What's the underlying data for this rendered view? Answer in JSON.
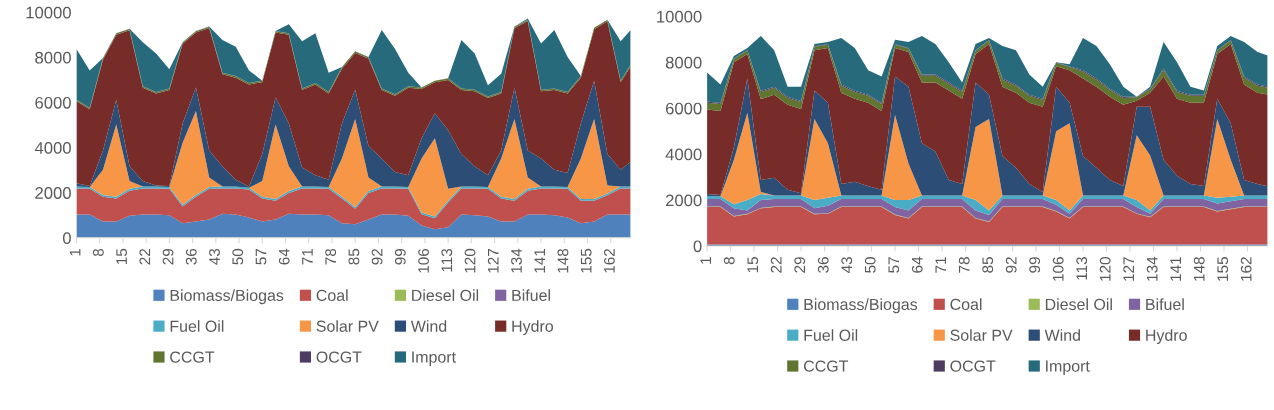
{
  "chart_data": [
    {
      "type": "area",
      "stacked": true,
      "legend": "bottom",
      "grid": false,
      "ylim": [
        0,
        10000
      ],
      "yticks": [
        0,
        2000,
        4000,
        6000,
        8000,
        10000
      ],
      "xlim": [
        1,
        168
      ],
      "xticks": [
        1,
        8,
        15,
        22,
        29,
        36,
        43,
        50,
        57,
        64,
        71,
        78,
        85,
        92,
        99,
        106,
        113,
        120,
        127,
        134,
        141,
        148,
        155,
        162
      ],
      "x": [
        1,
        5,
        9,
        13,
        17,
        21,
        25,
        29,
        33,
        37,
        41,
        45,
        49,
        53,
        57,
        61,
        65,
        69,
        73,
        77,
        81,
        85,
        89,
        93,
        97,
        101,
        105,
        109,
        113,
        117,
        121,
        125,
        129,
        133,
        137,
        141,
        145,
        149,
        153,
        157,
        161,
        165,
        168
      ],
      "series": [
        {
          "name": "Biomass/Biogas",
          "color": "#4f81bd",
          "values": [
            1030,
            1030,
            720,
            720,
            980,
            1030,
            1030,
            1000,
            640,
            720,
            810,
            1070,
            1030,
            900,
            720,
            810,
            1070,
            1030,
            1030,
            1000,
            640,
            600,
            810,
            1030,
            1030,
            980,
            550,
            380,
            470,
            1030,
            1000,
            950,
            720,
            720,
            1030,
            1030,
            1000,
            900,
            640,
            720,
            1030,
            1030,
            1030
          ]
        },
        {
          "name": "Coal",
          "color": "#c0504d",
          "values": [
            1160,
            1140,
            1100,
            1020,
            1110,
            1160,
            1160,
            1170,
            750,
            1100,
            1360,
            1120,
            1160,
            1240,
            1020,
            830,
            920,
            1160,
            1160,
            1170,
            1100,
            690,
            1180,
            1160,
            1160,
            1190,
            490,
            490,
            1090,
            1160,
            1190,
            1220,
            1020,
            920,
            1060,
            1160,
            1190,
            1270,
            1000,
            920,
            860,
            1160,
            1160
          ]
        },
        {
          "name": "Diesel Oil",
          "color": "#9bbb59",
          "values": [
            null,
            null,
            null,
            null,
            null,
            null,
            null,
            null,
            null,
            null,
            null,
            null,
            null,
            null,
            null,
            null,
            null,
            null,
            null,
            null,
            null,
            null,
            null,
            null,
            null,
            null,
            null,
            null,
            null,
            null,
            null,
            null,
            null,
            null,
            null,
            null,
            null,
            null,
            null,
            null,
            null,
            null,
            null
          ]
        },
        {
          "name": "Bifuel",
          "color": "#8064a2",
          "values": [
            null,
            null,
            null,
            null,
            null,
            null,
            null,
            null,
            null,
            null,
            null,
            null,
            null,
            null,
            null,
            null,
            null,
            null,
            null,
            null,
            null,
            null,
            null,
            null,
            null,
            null,
            null,
            null,
            null,
            null,
            null,
            null,
            null,
            null,
            null,
            null,
            null,
            null,
            null,
            null,
            null,
            null,
            null
          ]
        },
        {
          "name": "Fuel Oil",
          "color": "#4bacc6",
          "values": [
            80,
            80,
            80,
            80,
            80,
            80,
            80,
            80,
            80,
            80,
            80,
            80,
            80,
            80,
            80,
            80,
            80,
            80,
            80,
            80,
            80,
            80,
            80,
            80,
            80,
            80,
            80,
            80,
            80,
            80,
            80,
            80,
            80,
            80,
            80,
            80,
            80,
            80,
            80,
            80,
            80,
            80,
            80
          ]
        },
        {
          "name": "Solar PV",
          "color": "#f79646",
          "values": [
            0,
            0,
            1120,
            3200,
            350,
            0,
            0,
            0,
            2750,
            3720,
            420,
            0,
            0,
            0,
            700,
            3300,
            1100,
            0,
            0,
            0,
            1700,
            3900,
            600,
            0,
            0,
            0,
            2400,
            3470,
            530,
            0,
            0,
            0,
            1700,
            3550,
            500,
            0,
            0,
            0,
            1800,
            3550,
            350,
            0,
            0
          ]
        },
        {
          "name": "Wind",
          "color": "#2c4d75",
          "values": [
            150,
            50,
            850,
            1100,
            650,
            250,
            50,
            50,
            850,
            1050,
            1200,
            900,
            300,
            50,
            1200,
            1200,
            1900,
            850,
            500,
            320,
            1550,
            1300,
            1400,
            1250,
            650,
            520,
            900,
            1100,
            2600,
            1450,
            900,
            520,
            350,
            1400,
            1200,
            1250,
            750,
            620,
            1550,
            1700,
            1400,
            750,
            1100
          ]
        },
        {
          "name": "Hydro",
          "color": "#772c2a",
          "values": [
            3630,
            3400,
            4030,
            2880,
            6030,
            4130,
            4080,
            4250,
            3530,
            2430,
            5430,
            4080,
            4530,
            4530,
            3180,
            2880,
            3930,
            3430,
            4030,
            3830,
            2430,
            1630,
            3880,
            3030,
            3380,
            3880,
            2180,
            1380,
            2230,
            2830,
            3330,
            3430,
            2530,
            2630,
            5730,
            2980,
            3530,
            3530,
            2030,
            2280,
            5880,
            3880,
            4230
          ]
        },
        {
          "name": "CCGT",
          "color": "#5f7530",
          "values": [
            60,
            60,
            60,
            60,
            60,
            60,
            60,
            60,
            60,
            60,
            60,
            60,
            60,
            60,
            60,
            60,
            60,
            60,
            60,
            60,
            60,
            60,
            60,
            60,
            60,
            60,
            60,
            60,
            60,
            60,
            60,
            60,
            60,
            60,
            60,
            60,
            60,
            60,
            60,
            60,
            60,
            60,
            60
          ]
        },
        {
          "name": "OCGT",
          "color": "#4d3b62",
          "values": [
            10,
            10,
            10,
            10,
            10,
            10,
            10,
            10,
            10,
            10,
            10,
            10,
            10,
            10,
            10,
            10,
            10,
            10,
            10,
            10,
            10,
            10,
            10,
            10,
            10,
            10,
            10,
            10,
            10,
            10,
            10,
            10,
            10,
            10,
            10,
            10,
            10,
            10,
            10,
            10,
            10,
            10,
            10
          ]
        },
        {
          "name": "Import",
          "color": "#276a7c",
          "values": [
            2250,
            1650,
            0,
            0,
            0,
            1950,
            1700,
            850,
            0,
            0,
            0,
            1450,
            1300,
            550,
            0,
            0,
            400,
            2100,
            2200,
            850,
            0,
            0,
            0,
            2600,
            2000,
            600,
            0,
            0,
            0,
            2150,
            1600,
            500,
            800,
            0,
            50,
            2050,
            2600,
            1550,
            0,
            0,
            0,
            1750,
            1550
          ]
        }
      ]
    },
    {
      "type": "area",
      "stacked": true,
      "legend": "bottom",
      "grid": false,
      "ylim": [
        0,
        10000
      ],
      "yticks": [
        0,
        2000,
        4000,
        6000,
        8000,
        10000
      ],
      "xlim": [
        1,
        168
      ],
      "xticks": [
        1,
        8,
        15,
        22,
        29,
        36,
        43,
        50,
        57,
        64,
        71,
        78,
        85,
        92,
        99,
        106,
        113,
        120,
        127,
        134,
        141,
        148,
        155,
        162
      ],
      "x": [
        1,
        5,
        9,
        13,
        17,
        21,
        25,
        29,
        33,
        37,
        41,
        45,
        49,
        53,
        57,
        61,
        65,
        69,
        73,
        77,
        81,
        85,
        89,
        93,
        97,
        101,
        105,
        109,
        113,
        117,
        121,
        125,
        129,
        133,
        137,
        141,
        145,
        149,
        153,
        157,
        161,
        165,
        168
      ],
      "series": [
        {
          "name": "Biomass/Biogas",
          "color": "#4f81bd",
          "values": [
            60,
            60,
            60,
            60,
            60,
            60,
            60,
            60,
            60,
            60,
            60,
            60,
            60,
            60,
            60,
            60,
            60,
            60,
            60,
            60,
            60,
            60,
            60,
            60,
            60,
            60,
            60,
            60,
            60,
            60,
            60,
            60,
            60,
            60,
            60,
            60,
            60,
            60,
            60,
            60,
            60,
            60,
            60
          ]
        },
        {
          "name": "Coal",
          "color": "#c0504d",
          "values": [
            1640,
            1640,
            1230,
            1320,
            1580,
            1640,
            1640,
            1640,
            1320,
            1340,
            1640,
            1640,
            1640,
            1640,
            1290,
            1140,
            1640,
            1640,
            1640,
            1640,
            1140,
            990,
            1640,
            1640,
            1640,
            1640,
            1440,
            1140,
            1640,
            1640,
            1640,
            1640,
            1340,
            1190,
            1640,
            1640,
            1640,
            1640,
            1440,
            1540,
            1640,
            1640,
            1640
          ]
        },
        {
          "name": "Diesel Oil",
          "color": "#9bbb59",
          "values": [
            20,
            20,
            20,
            20,
            20,
            20,
            20,
            20,
            20,
            20,
            20,
            20,
            20,
            20,
            20,
            20,
            20,
            20,
            20,
            20,
            20,
            20,
            20,
            20,
            20,
            20,
            20,
            20,
            20,
            20,
            20,
            20,
            20,
            20,
            20,
            20,
            20,
            20,
            20,
            20,
            20,
            20,
            20
          ]
        },
        {
          "name": "Bifuel",
          "color": "#8064a2",
          "values": [
            330,
            330,
            330,
            150,
            340,
            330,
            330,
            330,
            240,
            330,
            330,
            330,
            330,
            330,
            330,
            330,
            330,
            330,
            330,
            330,
            330,
            280,
            330,
            330,
            330,
            330,
            280,
            180,
            330,
            330,
            330,
            330,
            280,
            130,
            330,
            330,
            330,
            330,
            330,
            330,
            330,
            330,
            330
          ]
        },
        {
          "name": "Fuel Oil",
          "color": "#4bacc6",
          "values": [
            120,
            120,
            180,
            450,
            260,
            150,
            150,
            150,
            360,
            350,
            150,
            150,
            150,
            150,
            300,
            450,
            150,
            150,
            150,
            150,
            450,
            200,
            150,
            150,
            150,
            150,
            200,
            150,
            150,
            150,
            150,
            150,
            300,
            150,
            150,
            150,
            150,
            150,
            250,
            200,
            150,
            150,
            150
          ]
        },
        {
          "name": "Solar PV",
          "color": "#f79646",
          "values": [
            0,
            0,
            1940,
            3800,
            90,
            0,
            0,
            0,
            3530,
            2370,
            0,
            0,
            0,
            0,
            3710,
            1590,
            0,
            0,
            0,
            0,
            3180,
            3980,
            0,
            0,
            0,
            0,
            3000,
            3800,
            0,
            0,
            0,
            0,
            2820,
            2390,
            0,
            0,
            0,
            0,
            3430,
            1610,
            0,
            0,
            0
          ]
        },
        {
          "name": "Wind",
          "color": "#2c4d75",
          "values": [
            90,
            50,
            540,
            1500,
            530,
            770,
            250,
            100,
            1240,
            1770,
            500,
            600,
            400,
            250,
            1670,
            3350,
            2270,
            1920,
            680,
            500,
            1940,
            1060,
            1720,
            1210,
            500,
            150,
            1940,
            890,
            1720,
            1210,
            680,
            410,
            1240,
            2120,
            1560,
            860,
            500,
            410,
            880,
            1590,
            680,
            500,
            400
          ]
        },
        {
          "name": "Hydro",
          "color": "#772c2a",
          "values": [
            3680,
            3660,
            3700,
            1060,
            3520,
            3620,
            3700,
            3670,
            1760,
            2380,
            3980,
            3610,
            3640,
            3430,
            1240,
            1510,
            2650,
            3000,
            3890,
            3710,
            1240,
            2210,
            3020,
            3270,
            3540,
            3710,
            890,
            1410,
            3380,
            3530,
            3620,
            3540,
            270,
            620,
            3620,
            3350,
            3540,
            3630,
            1950,
            3450,
            4150,
            3980,
            4000
          ]
        },
        {
          "name": "CCGT",
          "color": "#5f7530",
          "values": [
            300,
            300,
            150,
            150,
            300,
            300,
            300,
            300,
            150,
            150,
            300,
            300,
            300,
            300,
            150,
            150,
            300,
            300,
            300,
            300,
            150,
            150,
            300,
            300,
            300,
            300,
            150,
            150,
            300,
            300,
            300,
            300,
            150,
            150,
            300,
            300,
            300,
            300,
            150,
            150,
            300,
            300,
            300
          ]
        },
        {
          "name": "OCGT",
          "color": "#4d3b62",
          "values": [
            50,
            50,
            20,
            20,
            50,
            50,
            50,
            50,
            20,
            20,
            50,
            50,
            50,
            50,
            20,
            20,
            50,
            50,
            50,
            50,
            20,
            20,
            50,
            50,
            50,
            50,
            20,
            20,
            50,
            50,
            50,
            50,
            20,
            20,
            50,
            50,
            50,
            50,
            20,
            20,
            50,
            50,
            50
          ]
        },
        {
          "name": "Import",
          "color": "#276a7c",
          "values": [
            1270,
            800,
            100,
            90,
            2400,
            1590,
            440,
            620,
            100,
            100,
            2030,
            1860,
            1060,
            1150,
            190,
            270,
            1680,
            1330,
            880,
            360,
            270,
            90,
            1420,
            1500,
            880,
            530,
            0,
            100,
            1410,
            1420,
            1070,
            440,
            0,
            90,
            1160,
            1240,
            350,
            180,
            180,
            180,
            1510,
            1420,
            1350
          ]
        }
      ]
    }
  ]
}
